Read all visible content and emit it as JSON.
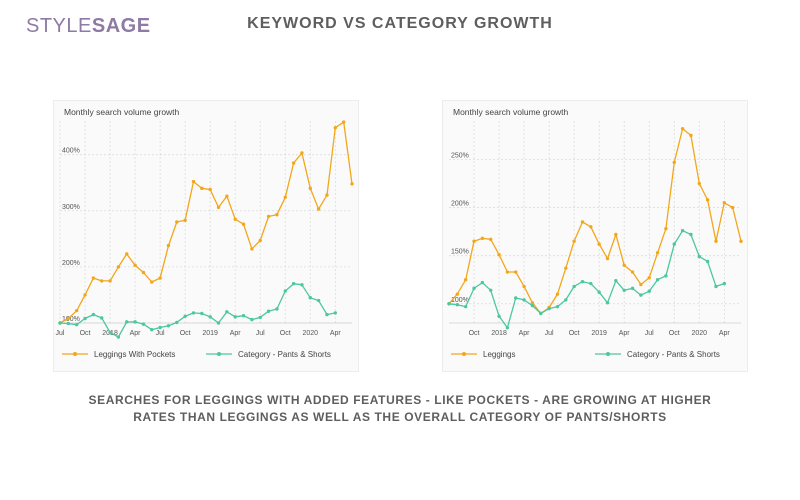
{
  "brand": {
    "logo_part1": "STYLE",
    "logo_part2": "SAGE"
  },
  "page_title": "KEYWORD VS CATEGORY GROWTH",
  "caption": {
    "line1": "SEARCHES FOR LEGGINGS WITH ADDED FEATURES - LIKE POCKETS - ARE GROWING AT HIGHER",
    "line2": "RATES THAN LEGGINGS AS WELL AS THE OVERALL CATEGORY OF PANTS/SHORTS"
  },
  "colors": {
    "series_orange": "#f2a71b",
    "series_green": "#4cc79f",
    "grid": "#d9d9d9",
    "text": "#5e5e5e"
  },
  "chart_data": [
    {
      "type": "line",
      "title": "Monthly search volume growth",
      "y_format": "percent",
      "ylim": [
        100,
        460
      ],
      "yticks": [
        100,
        200,
        300,
        400
      ],
      "ytick_labels": [
        "100%",
        "200%",
        "300%",
        "400%"
      ],
      "xticks": [
        {
          "index": 0,
          "label": "Jul"
        },
        {
          "index": 3,
          "label": "Oct"
        },
        {
          "index": 6,
          "label": "2018"
        },
        {
          "index": 9,
          "label": "Apr"
        },
        {
          "index": 12,
          "label": "Jul"
        },
        {
          "index": 15,
          "label": "Oct"
        },
        {
          "index": 18,
          "label": "2019"
        },
        {
          "index": 21,
          "label": "Apr"
        },
        {
          "index": 24,
          "label": "Jul"
        },
        {
          "index": 27,
          "label": "Oct"
        },
        {
          "index": 30,
          "label": "2020"
        },
        {
          "index": 33,
          "label": "Apr"
        }
      ],
      "grid": true,
      "legend_position": "bottom",
      "series": [
        {
          "name": "Leggings With Pockets",
          "color": "#f2a71b",
          "values": [
            100,
            108,
            122,
            150,
            180,
            175,
            175,
            200,
            223,
            203,
            190,
            173,
            180,
            238,
            280,
            283,
            352,
            340,
            338,
            306,
            326,
            285,
            276,
            232,
            247,
            290,
            293,
            324,
            385,
            403,
            340,
            303,
            328,
            448,
            458,
            348
          ]
        },
        {
          "name": "Category - Pants & Shorts",
          "color": "#4cc79f",
          "values": [
            100,
            99,
            97,
            108,
            115,
            109,
            83,
            75,
            102,
            102,
            98,
            88,
            92,
            95,
            101,
            112,
            118,
            117,
            111,
            100,
            120,
            111,
            113,
            106,
            110,
            121,
            125,
            157,
            170,
            168,
            145,
            140,
            115,
            118
          ]
        }
      ]
    },
    {
      "type": "line",
      "title": "Monthly search volume growth",
      "y_format": "percent",
      "ylim": [
        80,
        290
      ],
      "yticks": [
        100,
        150,
        200,
        250
      ],
      "ytick_labels": [
        "100%",
        "150%",
        "200%",
        "250%"
      ],
      "xticks": [
        {
          "index": 3,
          "label": "Oct"
        },
        {
          "index": 6,
          "label": "2018"
        },
        {
          "index": 9,
          "label": "Apr"
        },
        {
          "index": 12,
          "label": "Jul"
        },
        {
          "index": 15,
          "label": "Oct"
        },
        {
          "index": 18,
          "label": "2019"
        },
        {
          "index": 21,
          "label": "Apr"
        },
        {
          "index": 24,
          "label": "Jul"
        },
        {
          "index": 27,
          "label": "Oct"
        },
        {
          "index": 30,
          "label": "2020"
        },
        {
          "index": 33,
          "label": "Apr"
        }
      ],
      "grid": true,
      "legend_position": "bottom",
      "series": [
        {
          "name": "Leggings",
          "color": "#f2a71b",
          "values": [
            100,
            110,
            125,
            165,
            168,
            167,
            151,
            133,
            133,
            118,
            101,
            90,
            96,
            110,
            137,
            165,
            185,
            180,
            162,
            147,
            172,
            140,
            133,
            120,
            127,
            153,
            178,
            247,
            282,
            275,
            225,
            208,
            165,
            205,
            200,
            165
          ]
        },
        {
          "name": "Category - Pants & Shorts",
          "color": "#4cc79f",
          "values": [
            100,
            99,
            97,
            116,
            122,
            114,
            87,
            75,
            106,
            104,
            98,
            90,
            95,
            97,
            104,
            118,
            123,
            121,
            112,
            101,
            124,
            114,
            116,
            109,
            113,
            125,
            129,
            162,
            176,
            172,
            149,
            144,
            118,
            121
          ]
        }
      ]
    }
  ]
}
